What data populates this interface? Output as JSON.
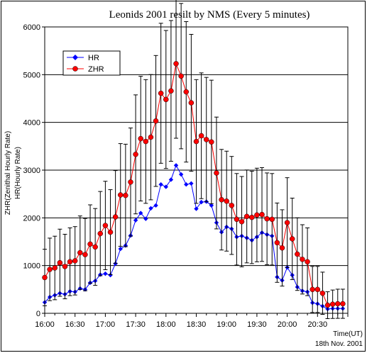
{
  "chart_data": {
    "type": "line",
    "title": "Leonids 2001 resilt by NMS (Every  5 minutes)",
    "ylabel_line1": "ZHR(Zenithal Hourly Rate)",
    "ylabel_line2": "HR(Hourly Rate)",
    "xlabel": "Time(UT)",
    "date_note": "18th Nov. 2001",
    "ylim": [
      0,
      6000
    ],
    "yticks": [
      "0",
      "1000",
      "2000",
      "3000",
      "4000",
      "5000",
      "6000"
    ],
    "xticks": [
      "16:00",
      "16:30",
      "17:00",
      "17:30",
      "18:00",
      "18:30",
      "19:00",
      "19:30",
      "20:00",
      "20:30"
    ],
    "xlim_minutes": [
      0,
      300
    ],
    "grid": "horizontal",
    "legend": "top-left",
    "series": [
      {
        "name": "HR",
        "color": "#0000ff",
        "marker": "diamond",
        "x": [
          "16:00",
          "16:05",
          "16:10",
          "16:15",
          "16:20",
          "16:25",
          "16:30",
          "16:35",
          "16:40",
          "16:45",
          "16:50",
          "16:55",
          "17:00",
          "17:05",
          "17:10",
          "17:15",
          "17:20",
          "17:25",
          "17:30",
          "17:35",
          "17:40",
          "17:45",
          "17:50",
          "17:55",
          "18:00",
          "18:05",
          "18:10",
          "18:15",
          "18:20",
          "18:25",
          "18:30",
          "18:35",
          "18:40",
          "18:45",
          "18:50",
          "18:55",
          "19:00",
          "19:05",
          "19:10",
          "19:15",
          "19:20",
          "19:25",
          "19:30",
          "19:35",
          "19:40",
          "19:45",
          "19:50",
          "19:55",
          "20:00",
          "20:05",
          "20:10",
          "20:15",
          "20:20",
          "20:25",
          "20:30",
          "20:35",
          "20:40",
          "20:45",
          "20:50",
          "20:55"
        ],
        "values": [
          230,
          340,
          380,
          420,
          400,
          460,
          450,
          520,
          500,
          640,
          680,
          810,
          830,
          800,
          1040,
          1350,
          1420,
          1630,
          1950,
          2100,
          1980,
          2200,
          2260,
          2700,
          2650,
          2800,
          3100,
          2910,
          2700,
          2720,
          2190,
          2330,
          2340,
          2260,
          1900,
          1700,
          1810,
          1770,
          1600,
          1620,
          1580,
          1530,
          1600,
          1690,
          1650,
          1620,
          760,
          690,
          960,
          800,
          550,
          470,
          450,
          220,
          200,
          150,
          90,
          100,
          100,
          100
        ]
      },
      {
        "name": "ZHR",
        "color": "#ff0000",
        "marker": "circle",
        "x": [
          "16:00",
          "16:05",
          "16:10",
          "16:15",
          "16:20",
          "16:25",
          "16:30",
          "16:35",
          "16:40",
          "16:45",
          "16:50",
          "16:55",
          "17:00",
          "17:05",
          "17:10",
          "17:15",
          "17:20",
          "17:25",
          "17:30",
          "17:35",
          "17:40",
          "17:45",
          "17:50",
          "17:55",
          "18:00",
          "18:05",
          "18:10",
          "18:15",
          "18:20",
          "18:25",
          "18:30",
          "18:35",
          "18:40",
          "18:45",
          "18:50",
          "18:55",
          "19:00",
          "19:05",
          "19:10",
          "19:15",
          "19:20",
          "19:25",
          "19:30",
          "19:35",
          "19:40",
          "19:45",
          "19:50",
          "19:55",
          "20:00",
          "20:05",
          "20:10",
          "20:15",
          "20:20",
          "20:25",
          "20:30",
          "20:35",
          "20:40",
          "20:45",
          "20:50",
          "20:55"
        ],
        "values": [
          750,
          920,
          950,
          1060,
          980,
          1080,
          1100,
          1270,
          1230,
          1450,
          1390,
          1670,
          1840,
          1700,
          2020,
          2480,
          2470,
          2750,
          3330,
          3660,
          3600,
          3690,
          4030,
          4610,
          4480,
          4660,
          5230,
          4970,
          4640,
          4410,
          3600,
          3720,
          3640,
          3590,
          2940,
          2380,
          2350,
          2260,
          1970,
          1920,
          2030,
          2010,
          2060,
          2070,
          1980,
          1970,
          1480,
          1370,
          1900,
          1560,
          1240,
          1130,
          1080,
          500,
          500,
          420,
          170,
          190,
          200,
          200
        ]
      }
    ]
  }
}
